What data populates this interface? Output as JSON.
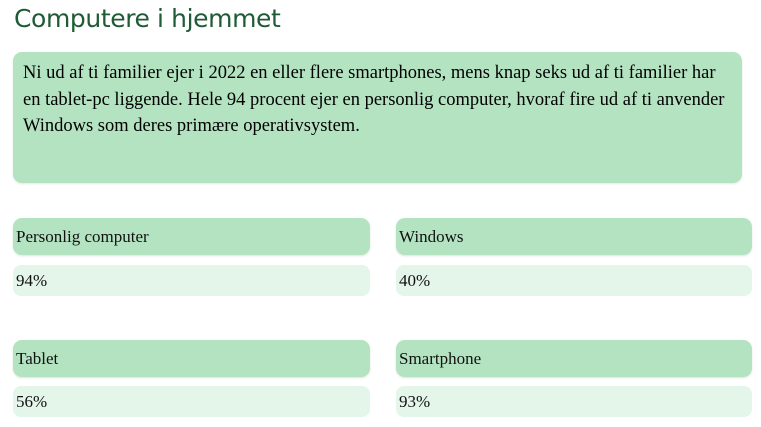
{
  "page": {
    "title": "Computere i hjemmet",
    "intro": "Ni ud af ti familier ejer i 2022 en eller flere smartphones, mens knap seks ud af ti familier har en tablet-pc liggende. Hele 94 procent ejer en personlig computer, hvoraf fire ud af ti anvender Windows som deres primære operativsystem."
  },
  "stats": [
    {
      "label": "Personlig computer",
      "value": "94%"
    },
    {
      "label": "Windows",
      "value": "40%"
    },
    {
      "label": "Tablet",
      "value": "56%"
    },
    {
      "label": "Smartphone",
      "value": "93%"
    }
  ],
  "colors": {
    "title": "#1f5b35",
    "label_background": "#b3e3c1",
    "value_background": "#e4f5e9"
  }
}
